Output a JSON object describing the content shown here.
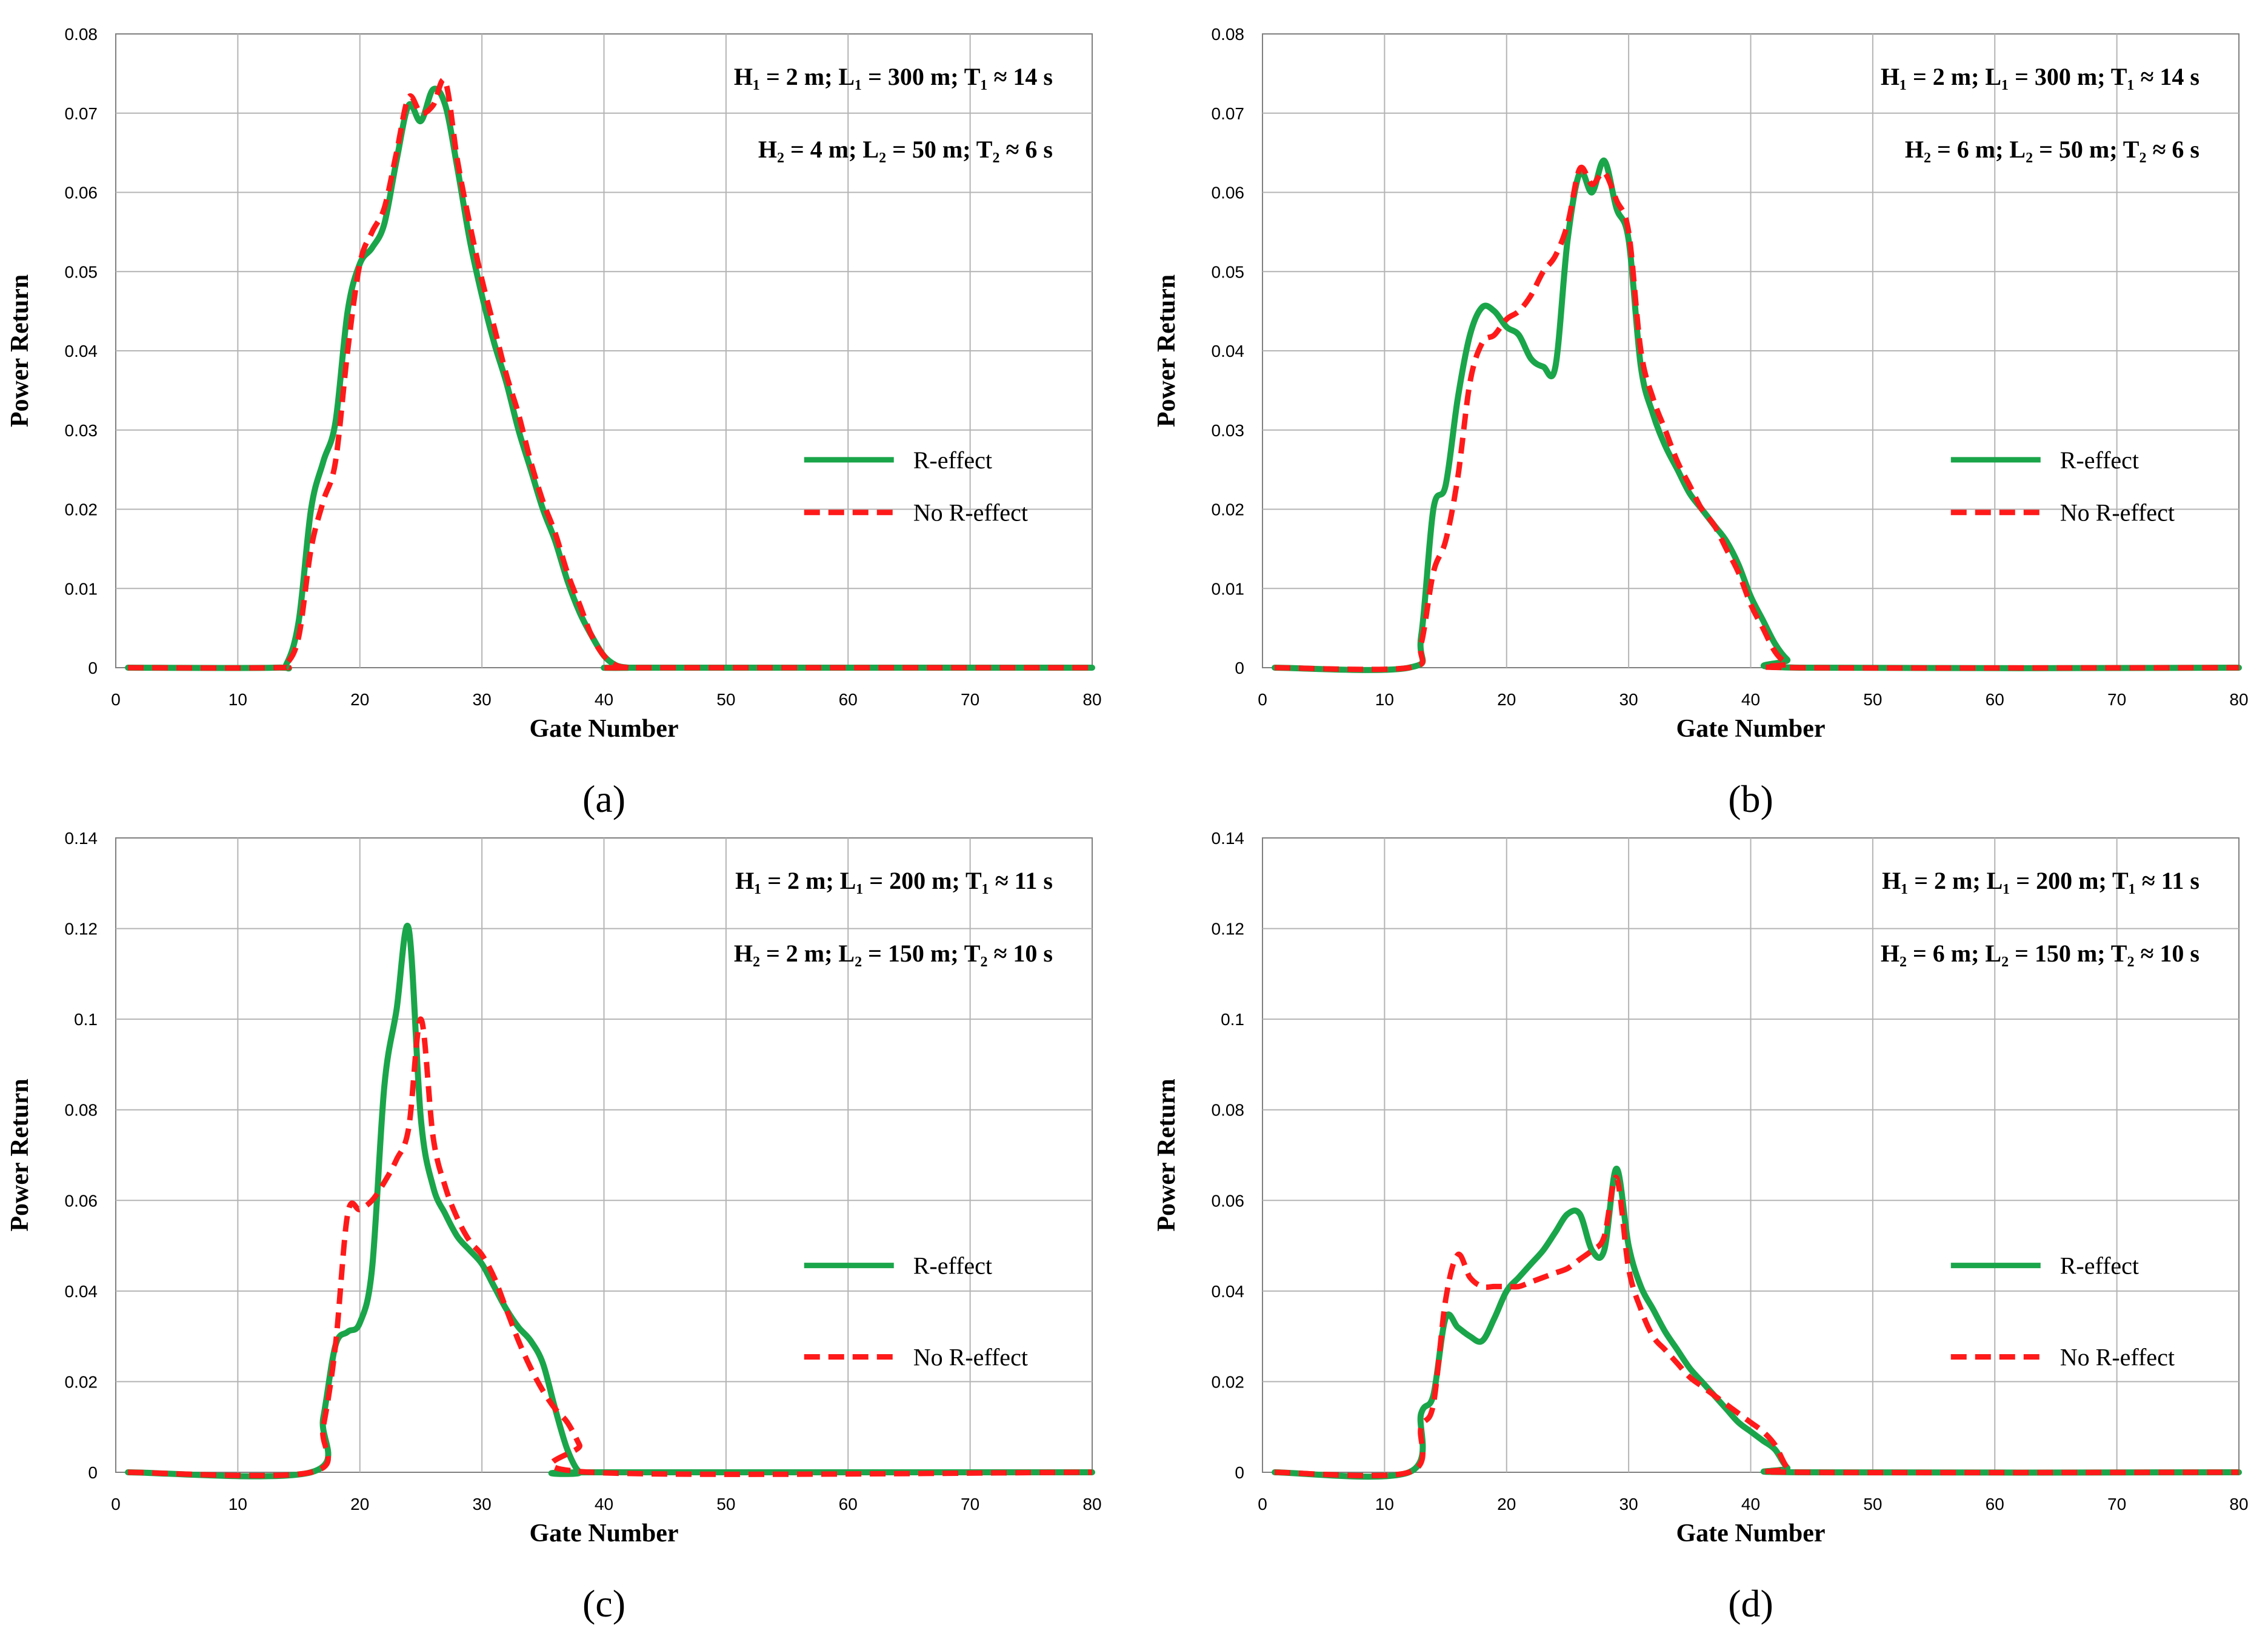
{
  "figure": {
    "colors": {
      "r_effect": "#1aa54a",
      "no_r_effect": "#ff1a1a",
      "grid": "#b4b4b4",
      "frame": "#7f7f7f"
    },
    "legend": {
      "r_effect": "R-effect",
      "no_r_effect": "No R-effect"
    }
  },
  "chart_data": [
    {
      "type": "line",
      "panel_label": "(a)",
      "xlabel": "Gate Number",
      "ylabel": "Power Return",
      "xlim": [
        0,
        80
      ],
      "ylim": [
        0,
        0.08
      ],
      "xticks": [
        "0",
        "10",
        "20",
        "30",
        "40",
        "50",
        "60",
        "70",
        "80"
      ],
      "yticks": [
        "0",
        "0.01",
        "0.02",
        "0.03",
        "0.04",
        "0.05",
        "0.06",
        "0.07",
        "0.08"
      ],
      "annotation_line1": "H₁ = 2 m; L₁ = 300 m; T₁ ≈ 14 s",
      "annotation_line2": "H₂ = 4 m; L₂ =   50 m; T₂ ≈  6 s",
      "legend_position": "right-middle",
      "series": [
        {
          "name": "R-effect",
          "x": [
            1,
            13,
            14,
            15,
            16,
            17,
            18,
            19,
            20,
            21,
            22,
            23,
            24,
            25,
            26,
            27,
            28,
            29,
            30,
            31,
            32,
            33,
            34,
            35,
            36,
            37,
            38,
            39,
            40,
            41,
            42,
            43,
            80
          ],
          "y": [
            0,
            0,
            0.0005,
            0.006,
            0.02,
            0.026,
            0.031,
            0.045,
            0.051,
            0.053,
            0.056,
            0.064,
            0.071,
            0.069,
            0.073,
            0.071,
            0.063,
            0.054,
            0.047,
            0.041,
            0.036,
            0.03,
            0.025,
            0.02,
            0.016,
            0.011,
            0.007,
            0.004,
            0.0015,
            0.0003,
            0,
            0,
            0
          ]
        },
        {
          "name": "No R-effect",
          "x": [
            1,
            13,
            14,
            15,
            16,
            17,
            18,
            19,
            20,
            21,
            22,
            23,
            24,
            25,
            26,
            27,
            28,
            29,
            30,
            31,
            32,
            33,
            34,
            35,
            36,
            37,
            38,
            39,
            40,
            41,
            42,
            43,
            80
          ],
          "y": [
            0,
            0,
            0.0005,
            0.004,
            0.015,
            0.021,
            0.026,
            0.04,
            0.051,
            0.055,
            0.058,
            0.065,
            0.072,
            0.07,
            0.071,
            0.074,
            0.064,
            0.056,
            0.049,
            0.043,
            0.037,
            0.032,
            0.026,
            0.021,
            0.017,
            0.012,
            0.008,
            0.004,
            0.0015,
            0.0003,
            0,
            0,
            0
          ]
        }
      ]
    },
    {
      "type": "line",
      "panel_label": "(b)",
      "xlabel": "Gate Number",
      "ylabel": "Power Return",
      "xlim": [
        0,
        80
      ],
      "ylim": [
        0,
        0.08
      ],
      "xticks": [
        "0",
        "10",
        "20",
        "30",
        "40",
        "50",
        "60",
        "70",
        "80"
      ],
      "yticks": [
        "0",
        "0.01",
        "0.02",
        "0.03",
        "0.04",
        "0.05",
        "0.06",
        "0.07",
        "0.08"
      ],
      "annotation_line1": "H₁ = 2 m; L₁ = 300 m; T₁ ≈ 14 s",
      "annotation_line2": "H₂ = 6 m; L₂ =   50 m; T₂ ≈  6 s",
      "legend_position": "right-middle",
      "series": [
        {
          "name": "R-effect",
          "x": [
            1,
            12,
            13,
            14,
            15,
            16,
            17,
            18,
            19,
            20,
            21,
            22,
            23,
            24,
            25,
            26,
            27,
            28,
            29,
            30,
            31,
            32,
            33,
            34,
            35,
            36,
            37,
            38,
            39,
            40,
            41,
            42,
            43,
            44,
            80
          ],
          "y": [
            0,
            0,
            0.004,
            0.02,
            0.023,
            0.034,
            0.042,
            0.0455,
            0.045,
            0.043,
            0.042,
            0.039,
            0.038,
            0.038,
            0.054,
            0.0625,
            0.06,
            0.064,
            0.058,
            0.054,
            0.038,
            0.032,
            0.028,
            0.025,
            0.022,
            0.02,
            0.018,
            0.016,
            0.013,
            0.009,
            0.006,
            0.003,
            0.001,
            0,
            0
          ]
        },
        {
          "name": "No R-effect",
          "x": [
            1,
            12,
            13,
            14,
            15,
            16,
            17,
            18,
            19,
            20,
            21,
            22,
            23,
            24,
            25,
            26,
            27,
            28,
            29,
            30,
            31,
            32,
            33,
            34,
            35,
            36,
            37,
            38,
            39,
            40,
            41,
            42,
            43,
            44,
            80
          ],
          "y": [
            0,
            0,
            0.003,
            0.012,
            0.016,
            0.024,
            0.036,
            0.041,
            0.042,
            0.044,
            0.045,
            0.047,
            0.05,
            0.052,
            0.056,
            0.063,
            0.061,
            0.0625,
            0.059,
            0.055,
            0.04,
            0.034,
            0.03,
            0.026,
            0.023,
            0.02,
            0.018,
            0.015,
            0.012,
            0.008,
            0.005,
            0.002,
            0.0005,
            0,
            0
          ]
        }
      ]
    },
    {
      "type": "line",
      "panel_label": "(c)",
      "xlabel": "Gate Number",
      "ylabel": "Power Return",
      "xlim": [
        0,
        80
      ],
      "ylim": [
        0,
        0.14
      ],
      "xticks": [
        "0",
        "10",
        "20",
        "30",
        "40",
        "50",
        "60",
        "70",
        "80"
      ],
      "yticks": [
        "0",
        "0.02",
        "0.04",
        "0.06",
        "0.08",
        "0.1",
        "0.12",
        "0.14"
      ],
      "annotation_line1": "H₁ = 2 m; L₁ = 200 m; T₁ ≈ 11 s",
      "annotation_line2": "H₂ = 2 m; L₂ = 150 m; T₂ ≈ 10 s",
      "legend_position": "right-middle",
      "series": [
        {
          "name": "R-effect",
          "x": [
            1,
            16,
            17,
            18,
            19,
            20,
            21,
            22,
            23,
            24,
            25,
            26,
            27,
            28,
            29,
            30,
            31,
            32,
            33,
            34,
            35,
            36,
            37,
            38,
            39,
            80
          ],
          "y": [
            0,
            0,
            0.012,
            0.028,
            0.031,
            0.033,
            0.045,
            0.085,
            0.102,
            0.12,
            0.078,
            0.063,
            0.057,
            0.052,
            0.049,
            0.046,
            0.041,
            0.036,
            0.032,
            0.029,
            0.024,
            0.014,
            0.005,
            0,
            0,
            0
          ]
        },
        {
          "name": "No R-effect",
          "x": [
            1,
            16,
            17,
            18,
            19,
            20,
            21,
            22,
            23,
            24,
            25,
            26,
            27,
            28,
            29,
            30,
            31,
            32,
            33,
            34,
            35,
            36,
            37,
            38,
            39,
            80
          ],
          "y": [
            0,
            0,
            0.01,
            0.028,
            0.057,
            0.058,
            0.06,
            0.064,
            0.069,
            0.076,
            0.1,
            0.074,
            0.063,
            0.056,
            0.051,
            0.048,
            0.043,
            0.036,
            0.029,
            0.023,
            0.018,
            0.014,
            0.011,
            0.006,
            0,
            0
          ]
        }
      ]
    },
    {
      "type": "line",
      "panel_label": "(d)",
      "xlabel": "Gate Number",
      "ylabel": "Power Return",
      "xlim": [
        0,
        80
      ],
      "ylim": [
        0,
        0.14
      ],
      "xticks": [
        "0",
        "10",
        "20",
        "30",
        "40",
        "50",
        "60",
        "70",
        "80"
      ],
      "yticks": [
        "0",
        "0.02",
        "0.04",
        "0.06",
        "0.08",
        "0.1",
        "0.12",
        "0.14"
      ],
      "annotation_line1": "H₁ = 2 m; L₁ = 200 m; T₁ ≈ 11 s",
      "annotation_line2": "H₂ = 6 m; L₂ = 150 m; T₂ ≈ 10 s",
      "legend_position": "right-middle",
      "series": [
        {
          "name": "R-effect",
          "x": [
            1,
            12,
            13,
            14,
            15,
            16,
            17,
            18,
            19,
            20,
            21,
            22,
            23,
            24,
            25,
            26,
            27,
            28,
            29,
            30,
            31,
            32,
            33,
            34,
            35,
            36,
            37,
            38,
            39,
            40,
            41,
            42,
            43,
            44,
            80
          ],
          "y": [
            0,
            0,
            0.013,
            0.017,
            0.034,
            0.032,
            0.03,
            0.029,
            0.034,
            0.04,
            0.043,
            0.046,
            0.049,
            0.053,
            0.057,
            0.057,
            0.049,
            0.049,
            0.067,
            0.05,
            0.041,
            0.036,
            0.031,
            0.027,
            0.023,
            0.02,
            0.017,
            0.014,
            0.011,
            0.009,
            0.007,
            0.005,
            0.001,
            0,
            0
          ]
        },
        {
          "name": "No R-effect",
          "x": [
            1,
            12,
            13,
            14,
            15,
            16,
            17,
            18,
            19,
            20,
            21,
            22,
            23,
            24,
            25,
            26,
            27,
            28,
            29,
            30,
            31,
            32,
            33,
            34,
            35,
            36,
            37,
            38,
            39,
            40,
            41,
            42,
            43,
            44,
            80
          ],
          "y": [
            0,
            0,
            0.01,
            0.015,
            0.038,
            0.048,
            0.043,
            0.041,
            0.041,
            0.041,
            0.041,
            0.042,
            0.043,
            0.044,
            0.045,
            0.047,
            0.049,
            0.052,
            0.065,
            0.045,
            0.036,
            0.03,
            0.027,
            0.024,
            0.021,
            0.019,
            0.017,
            0.015,
            0.013,
            0.011,
            0.009,
            0.006,
            0.001,
            0,
            0
          ]
        }
      ]
    }
  ]
}
